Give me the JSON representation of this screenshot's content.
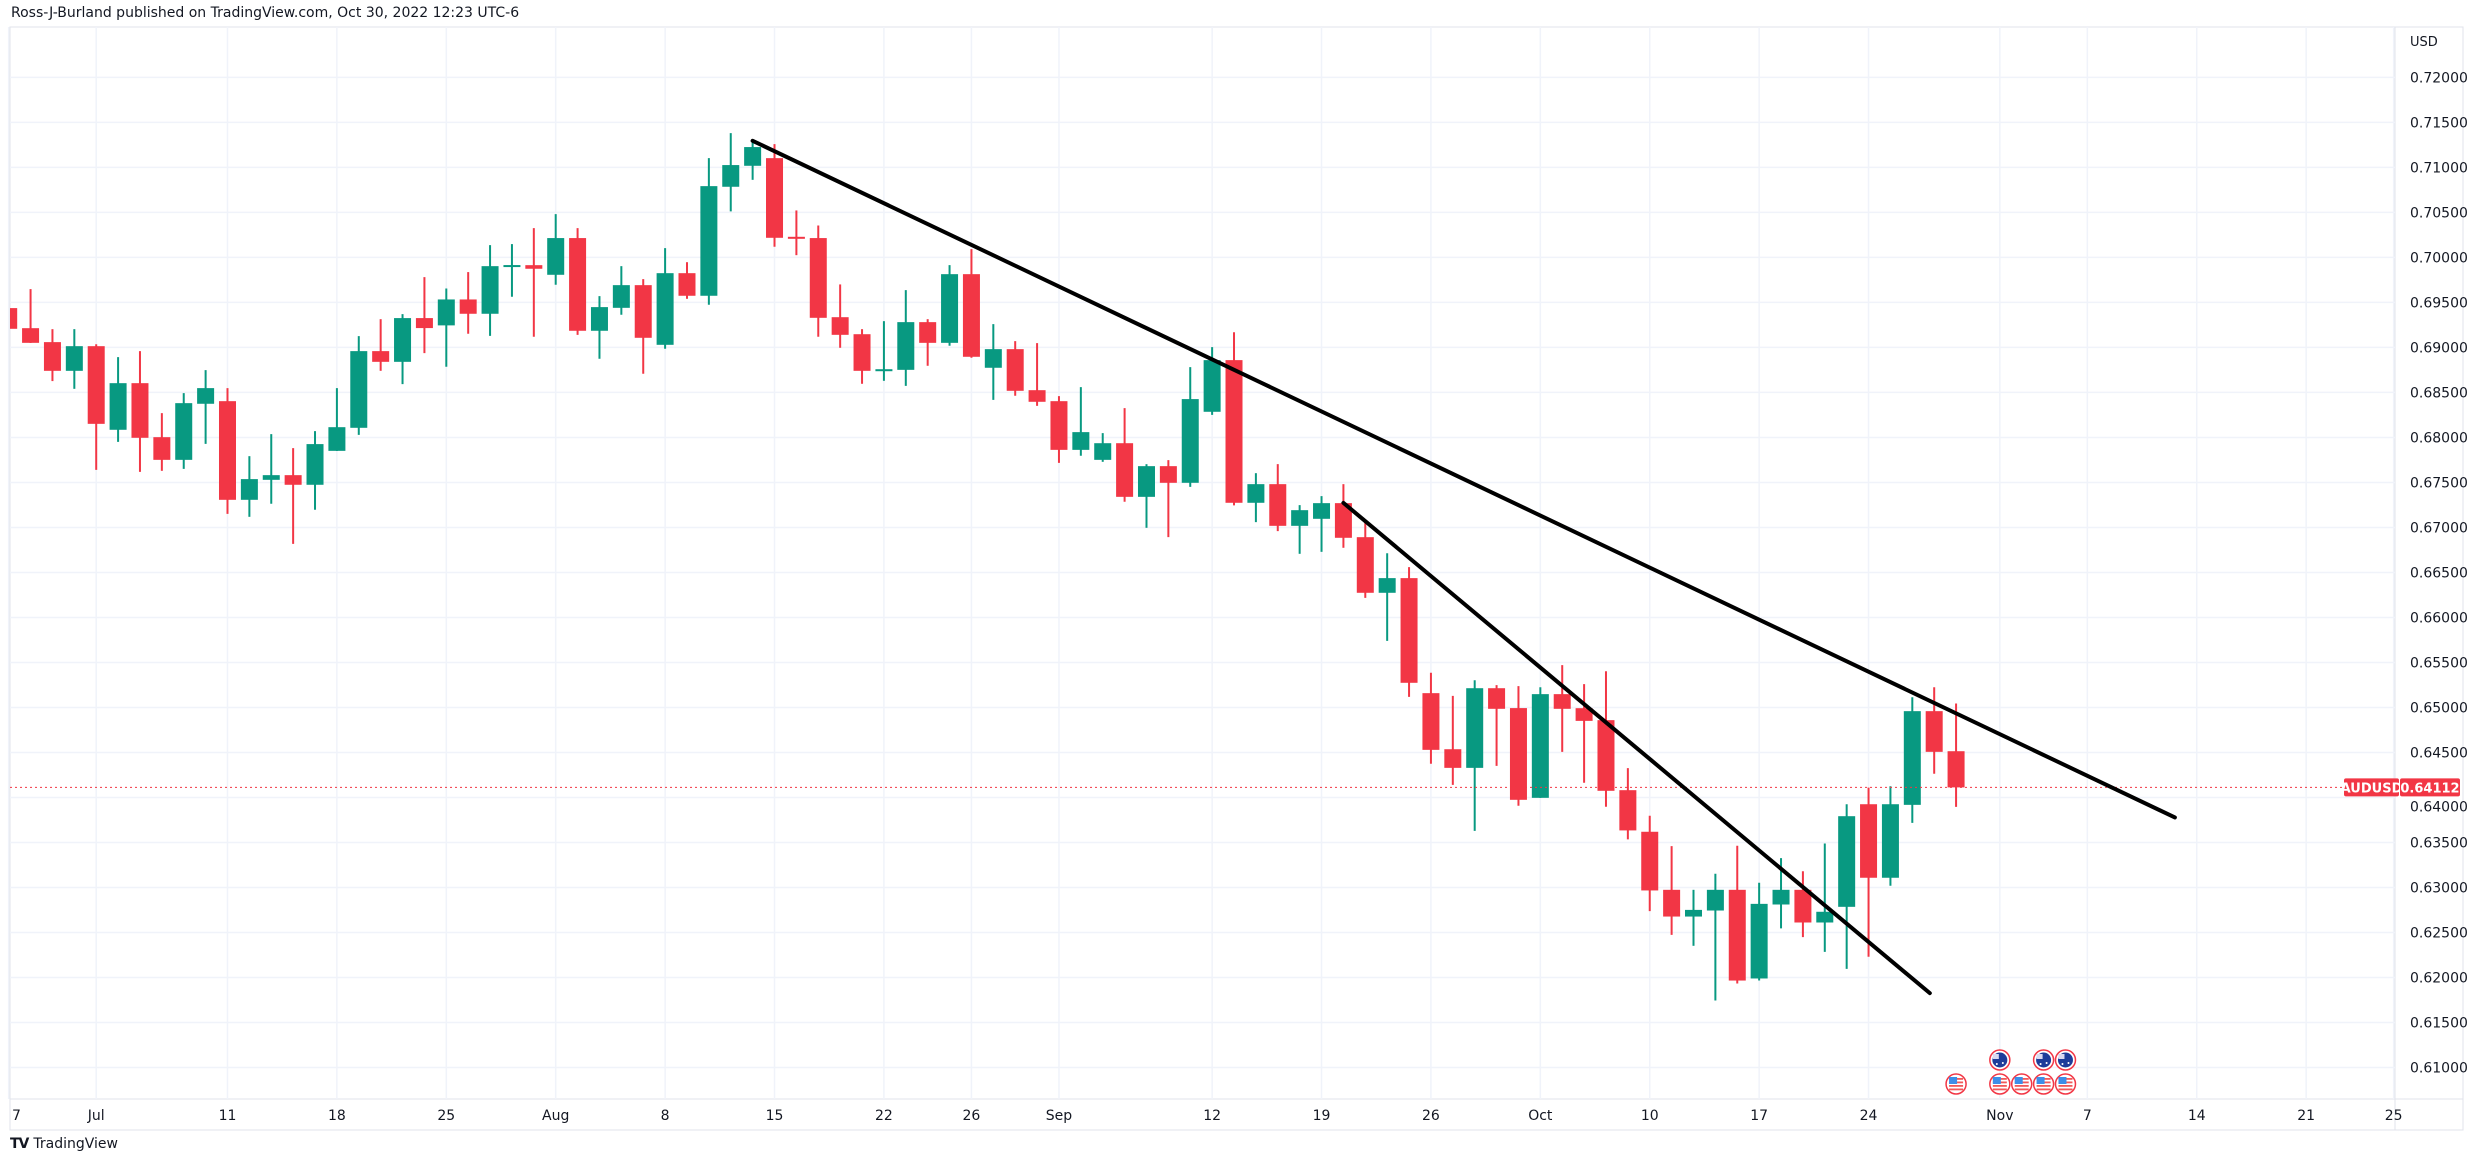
{
  "header": {
    "published": "Ross-J-Burland published on TradingView.com, Oct 30, 2022 12:23 UTC-6"
  },
  "footer": {
    "logo_mark": "TV",
    "brand": "TradingView"
  },
  "colors": {
    "up": "#089981",
    "down": "#F23645",
    "grid": "#f0f3fa",
    "trendline": "#000000",
    "text": "#131722"
  },
  "chart_data": {
    "type": "candlestick",
    "title": "AUDUSD, 1D",
    "symbol": "AUDUSD",
    "currency": "USD",
    "last_price": 0.64112,
    "last_price_label": "0.64112",
    "grid": true,
    "ylim": [
      0.6065,
      0.7256
    ],
    "xlim": [
      0.06,
      109.06
    ],
    "yaxis": {
      "ticks": [
        "0.72000",
        "0.71500",
        "0.71000",
        "0.70500",
        "0.70000",
        "0.69500",
        "0.69000",
        "0.68500",
        "0.68000",
        "0.67500",
        "0.67000",
        "0.66500",
        "0.66000",
        "0.65500",
        "0.65000",
        "0.64500",
        "0.64000",
        "0.63500",
        "0.63000",
        "0.62500",
        "0.62000",
        "0.61500",
        "0.61000"
      ]
    },
    "xaxis": {
      "ticks": [
        {
          "label": "7",
          "index": 0
        },
        {
          "label": "Jul",
          "index": 4
        },
        {
          "label": "11",
          "index": 10
        },
        {
          "label": "18",
          "index": 15
        },
        {
          "label": "25",
          "index": 20
        },
        {
          "label": "Aug",
          "index": 25
        },
        {
          "label": "8",
          "index": 30
        },
        {
          "label": "15",
          "index": 35
        },
        {
          "label": "22",
          "index": 40
        },
        {
          "label": "26",
          "index": 44
        },
        {
          "label": "Sep",
          "index": 48
        },
        {
          "label": "12",
          "index": 55
        },
        {
          "label": "19",
          "index": 60
        },
        {
          "label": "26",
          "index": 65
        },
        {
          "label": "Oct",
          "index": 70
        },
        {
          "label": "10",
          "index": 75
        },
        {
          "label": "17",
          "index": 80
        },
        {
          "label": "24",
          "index": 85
        },
        {
          "label": "Nov",
          "index": 91
        },
        {
          "label": "7",
          "index": 95
        },
        {
          "label": "14",
          "index": 100
        },
        {
          "label": "21",
          "index": 105
        },
        {
          "label": "25",
          "index": 109
        }
      ]
    },
    "candles": [
      [
        "Jun 27",
        0.69437,
        0.695,
        0.6915,
        0.69207
      ],
      [
        "Jun 28",
        0.69214,
        0.69648,
        0.6905,
        0.69051
      ],
      [
        "Jun 29",
        0.69059,
        0.69203,
        0.68626,
        0.6874
      ],
      [
        "Jun 30",
        0.6874,
        0.69203,
        0.6854,
        0.69014
      ],
      [
        "Jul 1",
        0.69014,
        0.69036,
        0.6764,
        0.68151
      ],
      [
        "Jul 4",
        0.68085,
        0.68892,
        0.67951,
        0.68603
      ],
      [
        "Jul 5",
        0.68603,
        0.68959,
        0.67618,
        0.67996
      ],
      [
        "Jul 6",
        0.68003,
        0.6827,
        0.67629,
        0.67751
      ],
      [
        "Jul 7",
        0.67751,
        0.68492,
        0.67651,
        0.68381
      ],
      [
        "Jul 8",
        0.68374,
        0.68748,
        0.67929,
        0.68548
      ],
      [
        "Jul 11",
        0.68403,
        0.68548,
        0.67151,
        0.67307
      ],
      [
        "Jul 12",
        0.67307,
        0.67792,
        0.67118,
        0.67537
      ],
      [
        "Jul 13",
        0.67529,
        0.68037,
        0.67263,
        0.67581
      ],
      [
        "Jul 14",
        0.67581,
        0.67881,
        0.66818,
        0.67474
      ],
      [
        "Jul 15",
        0.67474,
        0.6807,
        0.67196,
        0.67926
      ],
      [
        "Jul 18",
        0.67851,
        0.68548,
        0.6785,
        0.68114
      ],
      [
        "Jul 19",
        0.68107,
        0.69126,
        0.68029,
        0.68959
      ],
      [
        "Jul 20",
        0.68959,
        0.69314,
        0.6874,
        0.6884
      ],
      [
        "Jul 21",
        0.6884,
        0.6937,
        0.68592,
        0.69326
      ],
      [
        "Jul 22",
        0.69326,
        0.69781,
        0.68937,
        0.69215
      ],
      [
        "Jul 25",
        0.69245,
        0.69655,
        0.68785,
        0.69533
      ],
      [
        "Jul 26",
        0.69533,
        0.69837,
        0.69152,
        0.69374
      ],
      [
        "Jul 27",
        0.69374,
        0.70137,
        0.69129,
        0.69903
      ],
      [
        "Jul 28",
        0.699,
        0.70148,
        0.69563,
        0.69915
      ],
      [
        "Jul 29",
        0.69914,
        0.70326,
        0.69118,
        0.69874
      ],
      [
        "Aug 1",
        0.69807,
        0.70481,
        0.69696,
        0.70215
      ],
      [
        "Aug 2",
        0.70215,
        0.70326,
        0.6914,
        0.69185
      ],
      [
        "Aug 3",
        0.69185,
        0.6957,
        0.68874,
        0.69448
      ],
      [
        "Aug 4",
        0.6944,
        0.69903,
        0.69363,
        0.69692
      ],
      [
        "Aug 5",
        0.69692,
        0.69759,
        0.68707,
        0.69107
      ],
      [
        "Aug 8",
        0.69029,
        0.70103,
        0.68985,
        0.69825
      ],
      [
        "Aug 9",
        0.69825,
        0.69947,
        0.6954,
        0.69574
      ],
      [
        "Aug 10",
        0.69574,
        0.71103,
        0.69474,
        0.70792
      ],
      [
        "Aug 11",
        0.70785,
        0.71381,
        0.70511,
        0.71026
      ],
      [
        "Aug 12",
        0.71018,
        0.71296,
        0.70862,
        0.71226
      ],
      [
        "Aug 15",
        0.71103,
        0.71259,
        0.70118,
        0.70218
      ],
      [
        "Aug 16",
        0.70229,
        0.70522,
        0.70025,
        0.70207
      ],
      [
        "Aug 17",
        0.70215,
        0.70355,
        0.69118,
        0.69329
      ],
      [
        "Aug 18",
        0.69336,
        0.697,
        0.68996,
        0.6914
      ],
      [
        "Aug 19",
        0.69147,
        0.69203,
        0.68596,
        0.6874
      ],
      [
        "Aug 22",
        0.6874,
        0.69292,
        0.68629,
        0.68758
      ],
      [
        "Aug 23",
        0.68751,
        0.69637,
        0.68573,
        0.69281
      ],
      [
        "Aug 24",
        0.69281,
        0.69314,
        0.68796,
        0.69051
      ],
      [
        "Aug 25",
        0.69051,
        0.69914,
        0.69018,
        0.69814
      ],
      [
        "Aug 26",
        0.69814,
        0.70092,
        0.68885,
        0.68896
      ],
      [
        "Aug 29",
        0.68774,
        0.69259,
        0.68418,
        0.68981
      ],
      [
        "Aug 30",
        0.68981,
        0.6907,
        0.68463,
        0.68518
      ],
      [
        "Aug 31",
        0.68525,
        0.69048,
        0.68351,
        0.68396
      ],
      [
        "Sep 1",
        0.68403,
        0.68459,
        0.67718,
        0.67862
      ],
      [
        "Sep 2",
        0.67862,
        0.68559,
        0.67796,
        0.68059
      ],
      [
        "Sep 5",
        0.67751,
        0.68048,
        0.67729,
        0.67936
      ],
      [
        "Sep 6",
        0.67936,
        0.68325,
        0.67285,
        0.6734
      ],
      [
        "Sep 7",
        0.6734,
        0.67703,
        0.66996,
        0.67681
      ],
      [
        "Sep 8",
        0.67681,
        0.67748,
        0.66892,
        0.67496
      ],
      [
        "Sep 9",
        0.67496,
        0.68781,
        0.67451,
        0.68426
      ],
      [
        "Sep 12",
        0.68285,
        0.69003,
        0.68251,
        0.68859
      ],
      [
        "Sep 13",
        0.68859,
        0.69169,
        0.67245,
        0.67274
      ],
      [
        "Sep 14",
        0.67274,
        0.67603,
        0.67059,
        0.67481
      ],
      [
        "Sep 15",
        0.67481,
        0.67703,
        0.66959,
        0.67018
      ],
      [
        "Sep 16",
        0.67018,
        0.67248,
        0.66707,
        0.67192
      ],
      [
        "Sep 19",
        0.67096,
        0.67348,
        0.66729,
        0.6727
      ],
      [
        "Sep 20",
        0.6727,
        0.67481,
        0.66774,
        0.66885
      ],
      [
        "Sep 21",
        0.66892,
        0.6707,
        0.66218,
        0.66274
      ],
      [
        "Sep 22",
        0.66274,
        0.66714,
        0.6574,
        0.66437
      ],
      [
        "Sep 23",
        0.66437,
        0.66559,
        0.65118,
        0.65274
      ],
      [
        "Sep 26",
        0.65159,
        0.65385,
        0.64374,
        0.64529
      ],
      [
        "Sep 27",
        0.64536,
        0.65129,
        0.6414,
        0.64329
      ],
      [
        "Sep 28",
        0.64329,
        0.65303,
        0.63629,
        0.65214
      ],
      [
        "Sep 29",
        0.65214,
        0.65248,
        0.64351,
        0.64985
      ],
      [
        "Sep 30",
        0.64993,
        0.65237,
        0.63908,
        0.63974
      ],
      [
        "Oct 3",
        0.63996,
        0.65225,
        0.63996,
        0.65148
      ],
      [
        "Oct 4",
        0.65148,
        0.6547,
        0.64507,
        0.64985
      ],
      [
        "Oct 5",
        0.64992,
        0.65259,
        0.64163,
        0.64851
      ],
      [
        "Oct 6",
        0.64859,
        0.65403,
        0.63897,
        0.64074
      ],
      [
        "Oct 7",
        0.64081,
        0.64326,
        0.63534,
        0.63634
      ],
      [
        "Oct 10",
        0.63619,
        0.63797,
        0.62737,
        0.62967
      ],
      [
        "Oct 11",
        0.62974,
        0.63459,
        0.62474,
        0.62677
      ],
      [
        "Oct 12",
        0.62677,
        0.62974,
        0.62352,
        0.62751
      ],
      [
        "Oct 13",
        0.62744,
        0.63152,
        0.61744,
        0.62974
      ],
      [
        "Oct 14",
        0.62974,
        0.63463,
        0.61933,
        0.61966
      ],
      [
        "Oct 17",
        0.61989,
        0.63052,
        0.61967,
        0.62818
      ],
      [
        "Oct 18",
        0.62811,
        0.63326,
        0.62545,
        0.62974
      ],
      [
        "Oct 19",
        0.62974,
        0.63181,
        0.62448,
        0.62611
      ],
      [
        "Oct 20",
        0.62611,
        0.63489,
        0.62285,
        0.6273
      ],
      [
        "Oct 21",
        0.62785,
        0.63925,
        0.62096,
        0.63792
      ],
      [
        "Oct 24",
        0.63925,
        0.6411,
        0.62231,
        0.63108
      ],
      [
        "Oct 25",
        0.63108,
        0.64125,
        0.63019,
        0.63925
      ],
      [
        "Oct 26",
        0.63918,
        0.65114,
        0.63718,
        0.64959
      ],
      [
        "Oct 27",
        0.64959,
        0.65225,
        0.64263,
        0.64507
      ],
      [
        "Oct 28",
        0.64514,
        0.65044,
        0.63896,
        0.64112
      ]
    ],
    "trendlines": [
      {
        "name": "long-term-resistance",
        "from": {
          "index": 34,
          "price": 0.71296
        },
        "to": {
          "index": 99,
          "price": 0.63778
        }
      },
      {
        "name": "short-term-resistance",
        "from": {
          "index": 61,
          "price": 0.67273
        },
        "to": {
          "index": 87.8,
          "price": 0.61826
        }
      }
    ],
    "events": [
      {
        "index": 89,
        "row": 0,
        "icon": "us-flag-icon"
      },
      {
        "index": 91,
        "row": 0,
        "icon": "us-flag-icon"
      },
      {
        "index": 91,
        "row": 1,
        "icon": "au-flag-icon"
      },
      {
        "index": 92,
        "row": 0,
        "icon": "us-flag-icon"
      },
      {
        "index": 93,
        "row": 0,
        "icon": "us-flag-icon"
      },
      {
        "index": 93,
        "row": 1,
        "icon": "au-flag-icon"
      },
      {
        "index": 94,
        "row": 0,
        "icon": "us-flag-icon"
      },
      {
        "index": 94,
        "row": 1,
        "icon": "au-flag-icon"
      }
    ]
  }
}
